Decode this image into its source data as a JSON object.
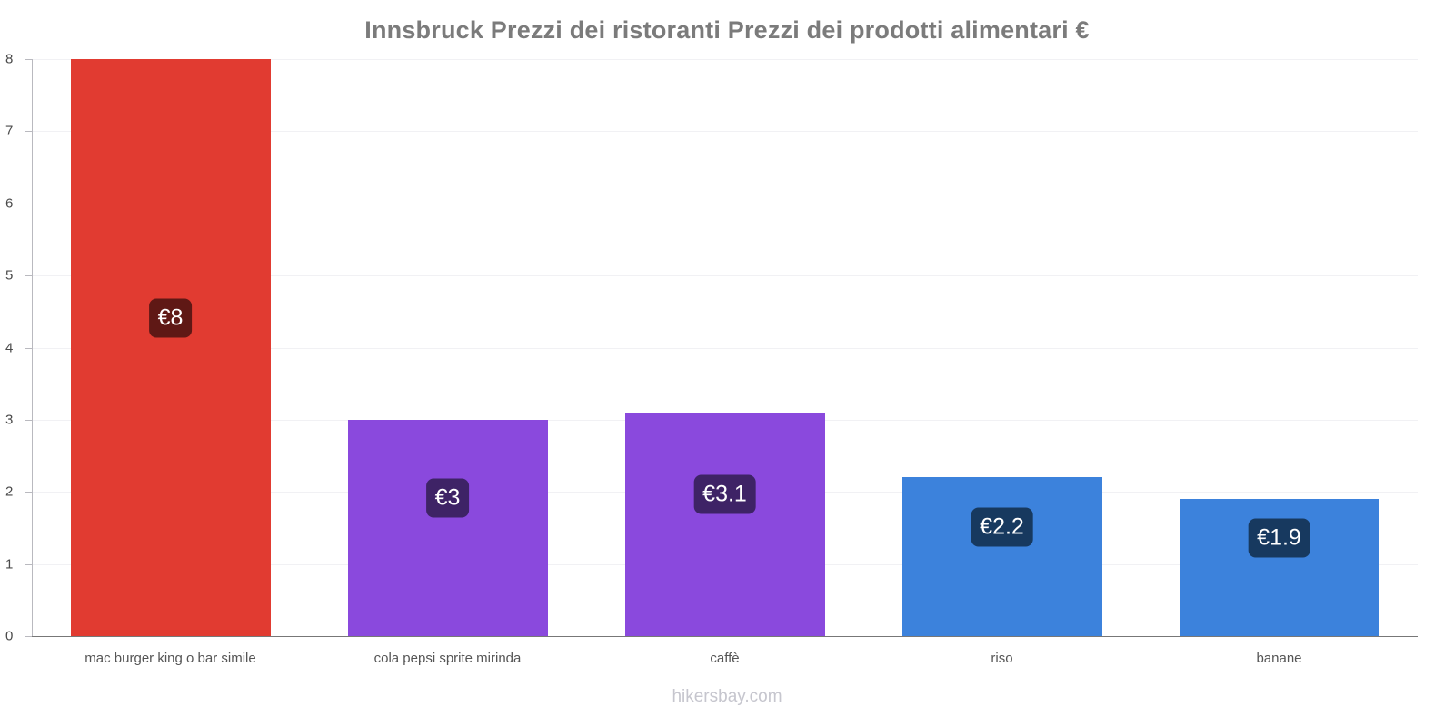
{
  "title": "Innsbruck Prezzi dei ristoranti Prezzi dei prodotti alimentari €",
  "footer": "hikersbay.com",
  "chart_data": {
    "type": "bar",
    "title": "Innsbruck Prezzi dei ristoranti Prezzi dei prodotti alimentari €",
    "categories": [
      "mac burger king o bar simile",
      "cola pepsi sprite mirinda",
      "caffè",
      "riso",
      "banane"
    ],
    "values": [
      8,
      3,
      3.1,
      2.2,
      1.9
    ],
    "value_labels": [
      "€8",
      "€3",
      "€3.1",
      "€2.2",
      "€1.9"
    ],
    "bar_colors": [
      "#e13b31",
      "#8a49dd",
      "#8a49dd",
      "#3c82dc",
      "#3c82dc"
    ],
    "badge_colors": [
      "#5f1815",
      "#3e2366",
      "#3e2366",
      "#17395f",
      "#17395f"
    ],
    "xlabel": "",
    "ylabel": "",
    "ylim": [
      0,
      8
    ],
    "yticks": [
      0,
      1,
      2,
      3,
      4,
      5,
      6,
      7,
      8
    ],
    "grid": true,
    "legend": "none",
    "currency": "€"
  }
}
